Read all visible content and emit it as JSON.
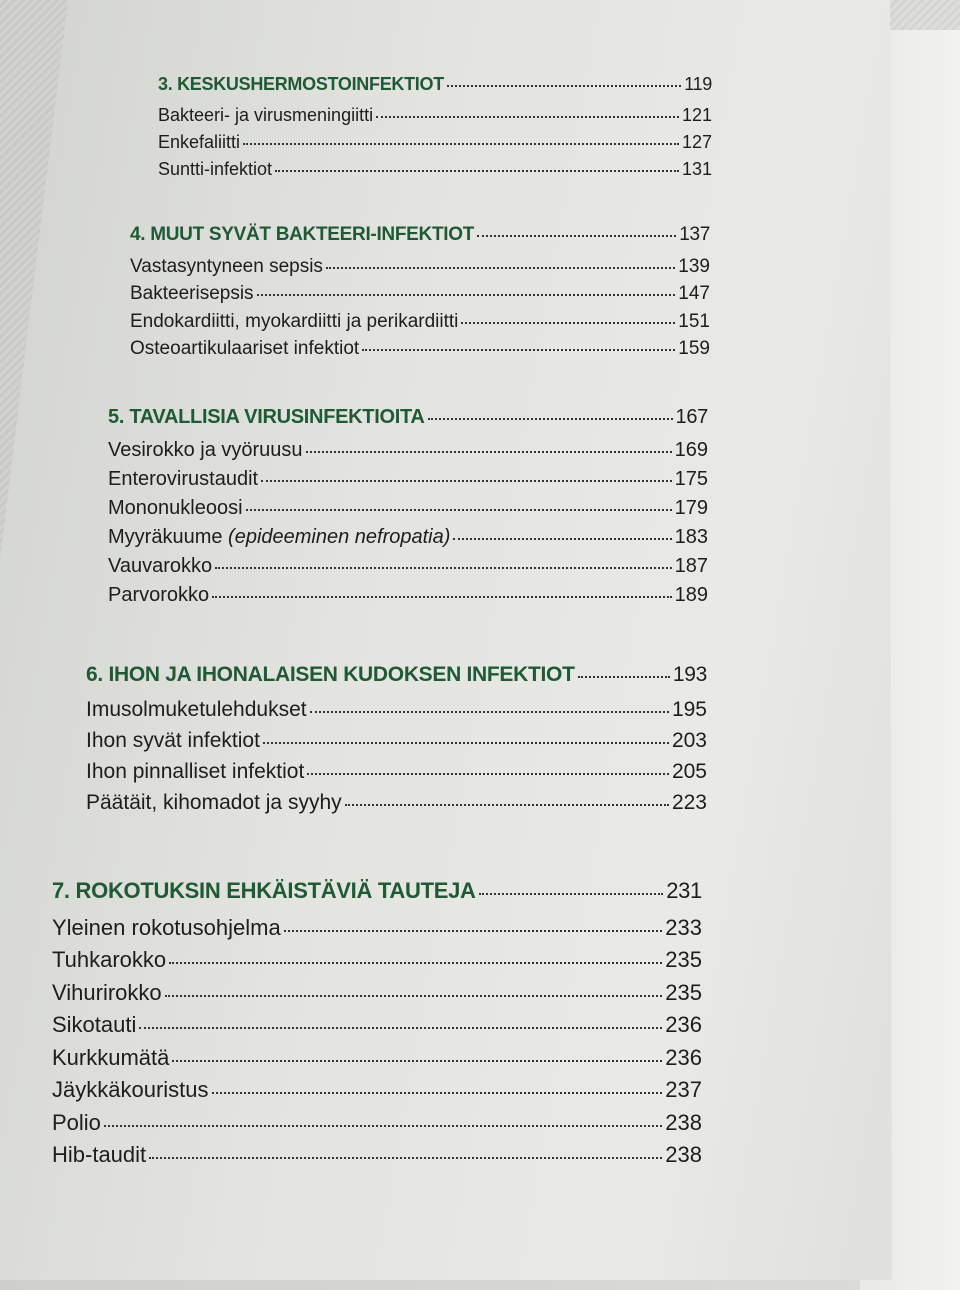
{
  "sections": [
    {
      "title": "3. KESKUSHERMOSTOINFEKTIOT",
      "page": "119",
      "items": [
        {
          "text": "Bakteeri- ja virusmeningiitti",
          "page": "121"
        },
        {
          "text": "Enkefaliitti",
          "page": "127"
        },
        {
          "text": "Suntti-infektiot",
          "page": "131"
        }
      ]
    },
    {
      "title": "4. MUUT SYVÄT BAKTEERI-INFEKTIOT",
      "page": "137",
      "items": [
        {
          "text": "Vastasyntyneen sepsis",
          "page": "139"
        },
        {
          "text": "Bakteerisepsis",
          "page": "147"
        },
        {
          "text": "Endokardiitti, myokardiitti ja perikardiitti",
          "page": "151"
        },
        {
          "text": "Osteoartikulaariset infektiot",
          "page": "159"
        }
      ]
    },
    {
      "title": "5. TAVALLISIA VIRUSINFEKTIOITA",
      "page": "167",
      "items": [
        {
          "text": "Vesirokko ja vyöruusu",
          "page": "169"
        },
        {
          "text": "Enterovirustaudit",
          "page": "175"
        },
        {
          "text": "Mononukleoosi",
          "page": "179"
        },
        {
          "text": "Myyräkuume",
          "text_italic": "(epideeminen nefropatia)",
          "page": "183"
        },
        {
          "text": "Vauvarokko",
          "page": "187"
        },
        {
          "text": "Parvorokko",
          "page": "189"
        }
      ]
    },
    {
      "title": "6. IHON JA IHONALAISEN KUDOKSEN INFEKTIOT",
      "page": "193",
      "items": [
        {
          "text": "Imusolmuketulehdukset",
          "page": "195"
        },
        {
          "text": "Ihon syvät infektiot",
          "page": "203"
        },
        {
          "text": "Ihon pinnalliset infektiot",
          "page": "205"
        },
        {
          "text": "Päätäit, kihomadot ja syyhy",
          "page": "223"
        }
      ]
    },
    {
      "title": "7. ROKOTUKSIN EHKÄISTÄVIÄ TAUTEJA",
      "page": "231",
      "items": [
        {
          "text": "Yleinen rokotusohjelma",
          "page": "233"
        },
        {
          "text": "Tuhkarokko",
          "page": "235"
        },
        {
          "text": "Vihurirokko",
          "page": "235"
        },
        {
          "text": "Sikotauti",
          "page": "236"
        },
        {
          "text": "Kurkkumätä",
          "page": "236"
        },
        {
          "text": "Jäykkäkouristus",
          "page": "237"
        },
        {
          "text": "Polio",
          "page": "238"
        },
        {
          "text": "Hib-taudit",
          "page": "238"
        }
      ]
    }
  ],
  "colors": {
    "heading": "#1f5a35",
    "text": "#1d1d1d"
  }
}
